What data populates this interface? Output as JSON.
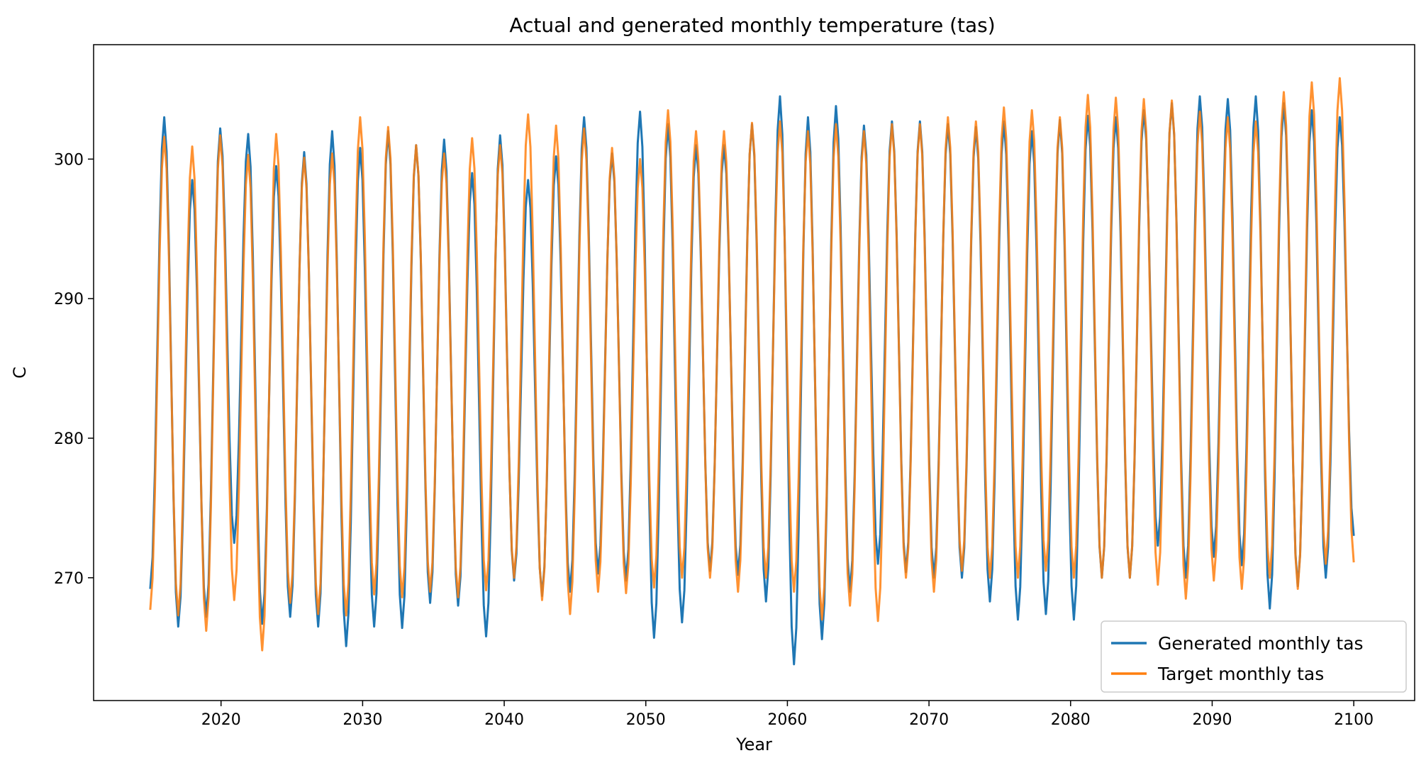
{
  "chart_data": {
    "type": "line",
    "title": "Actual and generated monthly temperature (tas)",
    "xlabel": "Year",
    "ylabel": "C",
    "xlim": [
      2011.0,
      2104.3
    ],
    "ylim": [
      261.2,
      308.2
    ],
    "xticks": [
      2020,
      2030,
      2040,
      2050,
      2060,
      2070,
      2080,
      2090,
      2100
    ],
    "yticks": [
      270,
      280,
      290,
      300
    ],
    "grid": false,
    "legend_position": "bottom-right",
    "x_start": 2015.0,
    "x_end": 2100.0,
    "points_per_year": 12,
    "series": [
      {
        "name": "Generated monthly tas",
        "color": "#1f77b4",
        "yearly_peaks": [
          303.0,
          298.5,
          302.2,
          301.8,
          299.5,
          300.5,
          302.0,
          300.8,
          302.0,
          301.0,
          301.4,
          299.0,
          301.7,
          298.5,
          300.2,
          303.0,
          300.4,
          303.4,
          302.5,
          301.0,
          301.0,
          302.5,
          304.5,
          303.0,
          303.8,
          302.4,
          302.7,
          302.7,
          302.5,
          302.3,
          302.7,
          302.0,
          302.8,
          303.1,
          303.0,
          303.5,
          304.0,
          304.5,
          304.3,
          304.5,
          304.0,
          303.5,
          303.0
        ],
        "yearly_troughs": [
          269.2,
          266.5,
          267.2,
          272.5,
          266.7,
          267.2,
          266.5,
          265.1,
          266.5,
          266.4,
          268.2,
          268.0,
          265.8,
          269.8,
          268.7,
          269.0,
          270.3,
          269.8,
          265.7,
          266.8,
          270.5,
          270.2,
          268.3,
          263.8,
          265.6,
          269.0,
          271.0,
          270.4,
          270.0,
          270.0,
          268.3,
          267.0,
          267.4,
          267.0,
          270.0,
          270.0,
          272.3,
          270.0,
          271.5,
          270.9,
          267.8,
          269.4,
          270.0
        ],
        "end_value": 273.0
      },
      {
        "name": "Target monthly tas",
        "color": "#ff7f0e",
        "yearly_peaks": [
          301.6,
          300.9,
          301.7,
          300.3,
          301.8,
          300.1,
          300.4,
          303.0,
          302.3,
          301.0,
          300.4,
          301.5,
          301.0,
          303.2,
          302.4,
          302.2,
          300.8,
          300.0,
          303.5,
          302.0,
          302.0,
          302.6,
          302.7,
          302.0,
          302.5,
          302.0,
          302.5,
          302.5,
          303.0,
          302.7,
          303.7,
          303.5,
          303.0,
          304.6,
          304.4,
          304.3,
          304.2,
          303.4,
          303.0,
          302.7,
          304.8,
          305.5,
          305.8
        ],
        "yearly_troughs": [
          267.7,
          267.3,
          266.2,
          268.4,
          264.8,
          268.2,
          267.4,
          267.3,
          268.8,
          268.6,
          269.0,
          268.6,
          269.1,
          270.0,
          268.4,
          267.4,
          269.0,
          268.9,
          269.3,
          270.0,
          270.0,
          269.0,
          270.0,
          269.0,
          267.0,
          268.0,
          266.9,
          270.0,
          269.0,
          270.5,
          270.0,
          270.0,
          270.5,
          270.0,
          270.0,
          270.0,
          269.5,
          268.5,
          269.8,
          269.2,
          270.0,
          269.2,
          271.0
        ],
        "end_value": 271.1
      }
    ]
  }
}
